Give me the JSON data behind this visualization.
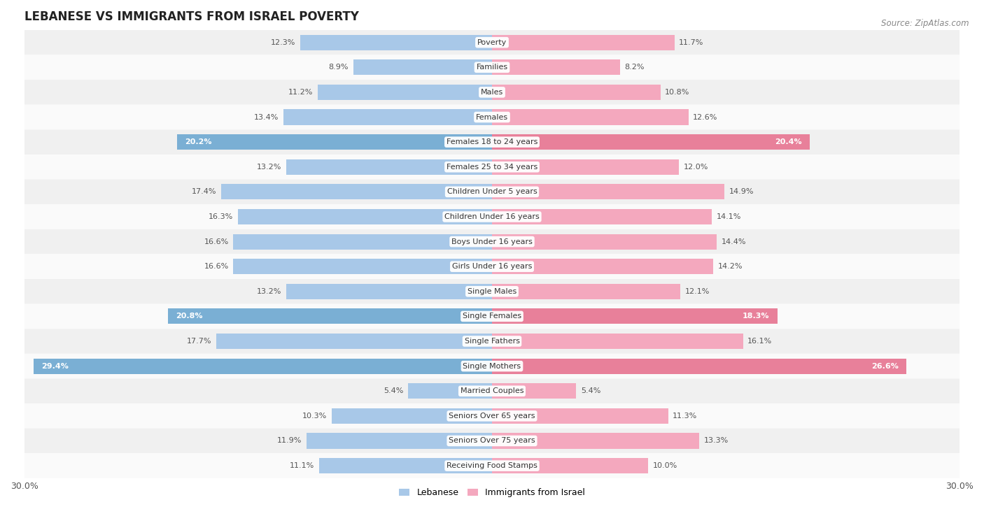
{
  "title": "LEBANESE VS IMMIGRANTS FROM ISRAEL POVERTY",
  "source": "Source: ZipAtlas.com",
  "categories": [
    "Poverty",
    "Families",
    "Males",
    "Females",
    "Females 18 to 24 years",
    "Females 25 to 34 years",
    "Children Under 5 years",
    "Children Under 16 years",
    "Boys Under 16 years",
    "Girls Under 16 years",
    "Single Males",
    "Single Females",
    "Single Fathers",
    "Single Mothers",
    "Married Couples",
    "Seniors Over 65 years",
    "Seniors Over 75 years",
    "Receiving Food Stamps"
  ],
  "lebanese": [
    12.3,
    8.9,
    11.2,
    13.4,
    20.2,
    13.2,
    17.4,
    16.3,
    16.6,
    16.6,
    13.2,
    20.8,
    17.7,
    29.4,
    5.4,
    10.3,
    11.9,
    11.1
  ],
  "immigrants": [
    11.7,
    8.2,
    10.8,
    12.6,
    20.4,
    12.0,
    14.9,
    14.1,
    14.4,
    14.2,
    12.1,
    18.3,
    16.1,
    26.6,
    5.4,
    11.3,
    13.3,
    10.0
  ],
  "lebanese_color": "#a8c8e8",
  "immigrants_color": "#f4a8be",
  "highlight_rows": [
    4,
    11,
    13
  ],
  "xlim": 30.0,
  "bar_height": 0.62,
  "bg_color_odd": "#f0f0f0",
  "bg_color_even": "#fafafa",
  "title_fontsize": 12,
  "source_fontsize": 8.5,
  "bar_label_fontsize": 8,
  "cat_label_fontsize": 8,
  "legend_fontsize": 9,
  "axis_label_fontsize": 9
}
